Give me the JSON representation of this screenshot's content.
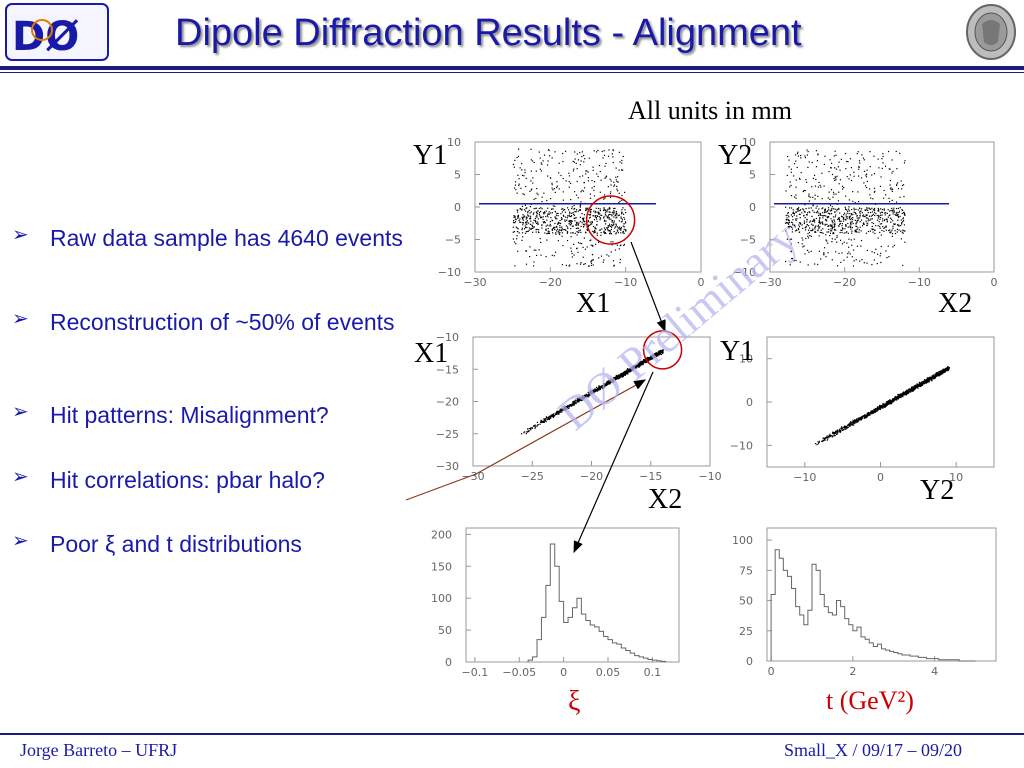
{
  "title": "Dipole Diffraction Results - Alignment",
  "units_note": "All units in mm",
  "bullets": [
    "Raw data sample has 4640 events",
    "Reconstruction of ~50% of events",
    "Hit patterns: Misalignment?",
    "Hit correlations: pbar halo?",
    "Poor ξ and t distributions"
  ],
  "logo_left": "DØ",
  "watermark": "DØ Preliminary",
  "footer": {
    "left": "Jorge Barreto – UFRJ",
    "right": "Small_X / 09/17 – 09/20"
  },
  "colors": {
    "title": "#1a1aa8",
    "accent_red": "#cc0000",
    "rule": "#1b1b7e",
    "hline": "#1a1aa8"
  },
  "chart_data": [
    {
      "type": "scatter",
      "id": "y1_vs_x1",
      "ylabel": "Y1",
      "xlabel": "X1",
      "x_ticks": [
        "−30",
        "−20",
        "−10",
        "0"
      ],
      "y_ticks": [
        "10",
        "5",
        "0",
        "−5",
        "−10"
      ],
      "xlim": [
        -30,
        0
      ],
      "ylim": [
        -10,
        10
      ],
      "cluster": {
        "x_range": [
          -25,
          -10
        ],
        "y_range": [
          -9,
          9
        ],
        "dense_y": [
          -4,
          0
        ]
      },
      "horizontal_line_y": 0.5,
      "highlight_circle": {
        "x": -12,
        "y": -2
      }
    },
    {
      "type": "scatter",
      "id": "y2_vs_x2",
      "ylabel": "Y2",
      "xlabel": "X2",
      "x_ticks": [
        "−30",
        "−20",
        "−10",
        "0"
      ],
      "y_ticks": [
        "10",
        "5",
        "0",
        "−5",
        "−10"
      ],
      "xlim": [
        -30,
        0
      ],
      "ylim": [
        -10,
        10
      ],
      "cluster": {
        "x_range": [
          -28,
          -12
        ],
        "y_range": [
          -9,
          9
        ],
        "dense_y": [
          -4,
          0
        ]
      },
      "horizontal_line_y": 0.5
    },
    {
      "type": "scatter",
      "id": "x1_vs_x2",
      "ylabel": "X1",
      "xlabel": "X2",
      "x_ticks": [
        "−30",
        "−25",
        "−20",
        "−15",
        "−10"
      ],
      "y_ticks": [
        "−10",
        "−15",
        "−20",
        "−25",
        "−30"
      ],
      "xlim": [
        -30,
        -10
      ],
      "ylim": [
        -30,
        -10
      ],
      "band": {
        "from": [
          -26,
          -25
        ],
        "to": [
          -14,
          -12
        ]
      },
      "highlight_circle": {
        "x": -14,
        "y": -12
      }
    },
    {
      "type": "scatter",
      "id": "y1_vs_y2",
      "ylabel": "Y1",
      "xlabel": "Y2",
      "x_ticks": [
        "−10",
        "0",
        "10"
      ],
      "y_ticks": [
        "10",
        "0",
        "−10"
      ],
      "xlim": [
        -15,
        15
      ],
      "ylim": [
        -15,
        15
      ],
      "band": {
        "from": [
          -9,
          -10
        ],
        "to": [
          9,
          8
        ]
      }
    },
    {
      "type": "bar",
      "id": "xi_hist",
      "xlabel": "ξ",
      "x_ticks": [
        "−0.1",
        "−0.05",
        "0",
        "0.05",
        "0.1"
      ],
      "y_ticks": [
        "200",
        "150",
        "100",
        "50",
        "0"
      ],
      "xlim": [
        -0.11,
        0.13
      ],
      "ylim": [
        0,
        210
      ],
      "bin_width": 0.005,
      "bins_start": -0.04,
      "values": [
        3,
        8,
        35,
        70,
        120,
        185,
        150,
        95,
        62,
        70,
        85,
        100,
        75,
        65,
        58,
        55,
        48,
        40,
        35,
        30,
        28,
        22,
        18,
        14,
        10,
        8,
        6,
        4,
        3,
        2,
        1
      ]
    },
    {
      "type": "bar",
      "id": "t_hist",
      "xlabel": "t (GeV²)",
      "x_ticks": [
        "0",
        "2",
        "4"
      ],
      "y_ticks": [
        "100",
        "75",
        "50",
        "25",
        "0"
      ],
      "xlim": [
        -0.1,
        5.5
      ],
      "ylim": [
        0,
        110
      ],
      "bin_width": 0.1,
      "bins_start": 0,
      "values": [
        55,
        92,
        85,
        75,
        70,
        60,
        45,
        38,
        30,
        42,
        80,
        75,
        55,
        45,
        40,
        38,
        50,
        45,
        35,
        30,
        25,
        28,
        20,
        18,
        15,
        12,
        14,
        10,
        9,
        8,
        7,
        6,
        5,
        5,
        4,
        4,
        3,
        3,
        2,
        2,
        2,
        1,
        1,
        1,
        1,
        1,
        0,
        0,
        0,
        0
      ]
    }
  ]
}
